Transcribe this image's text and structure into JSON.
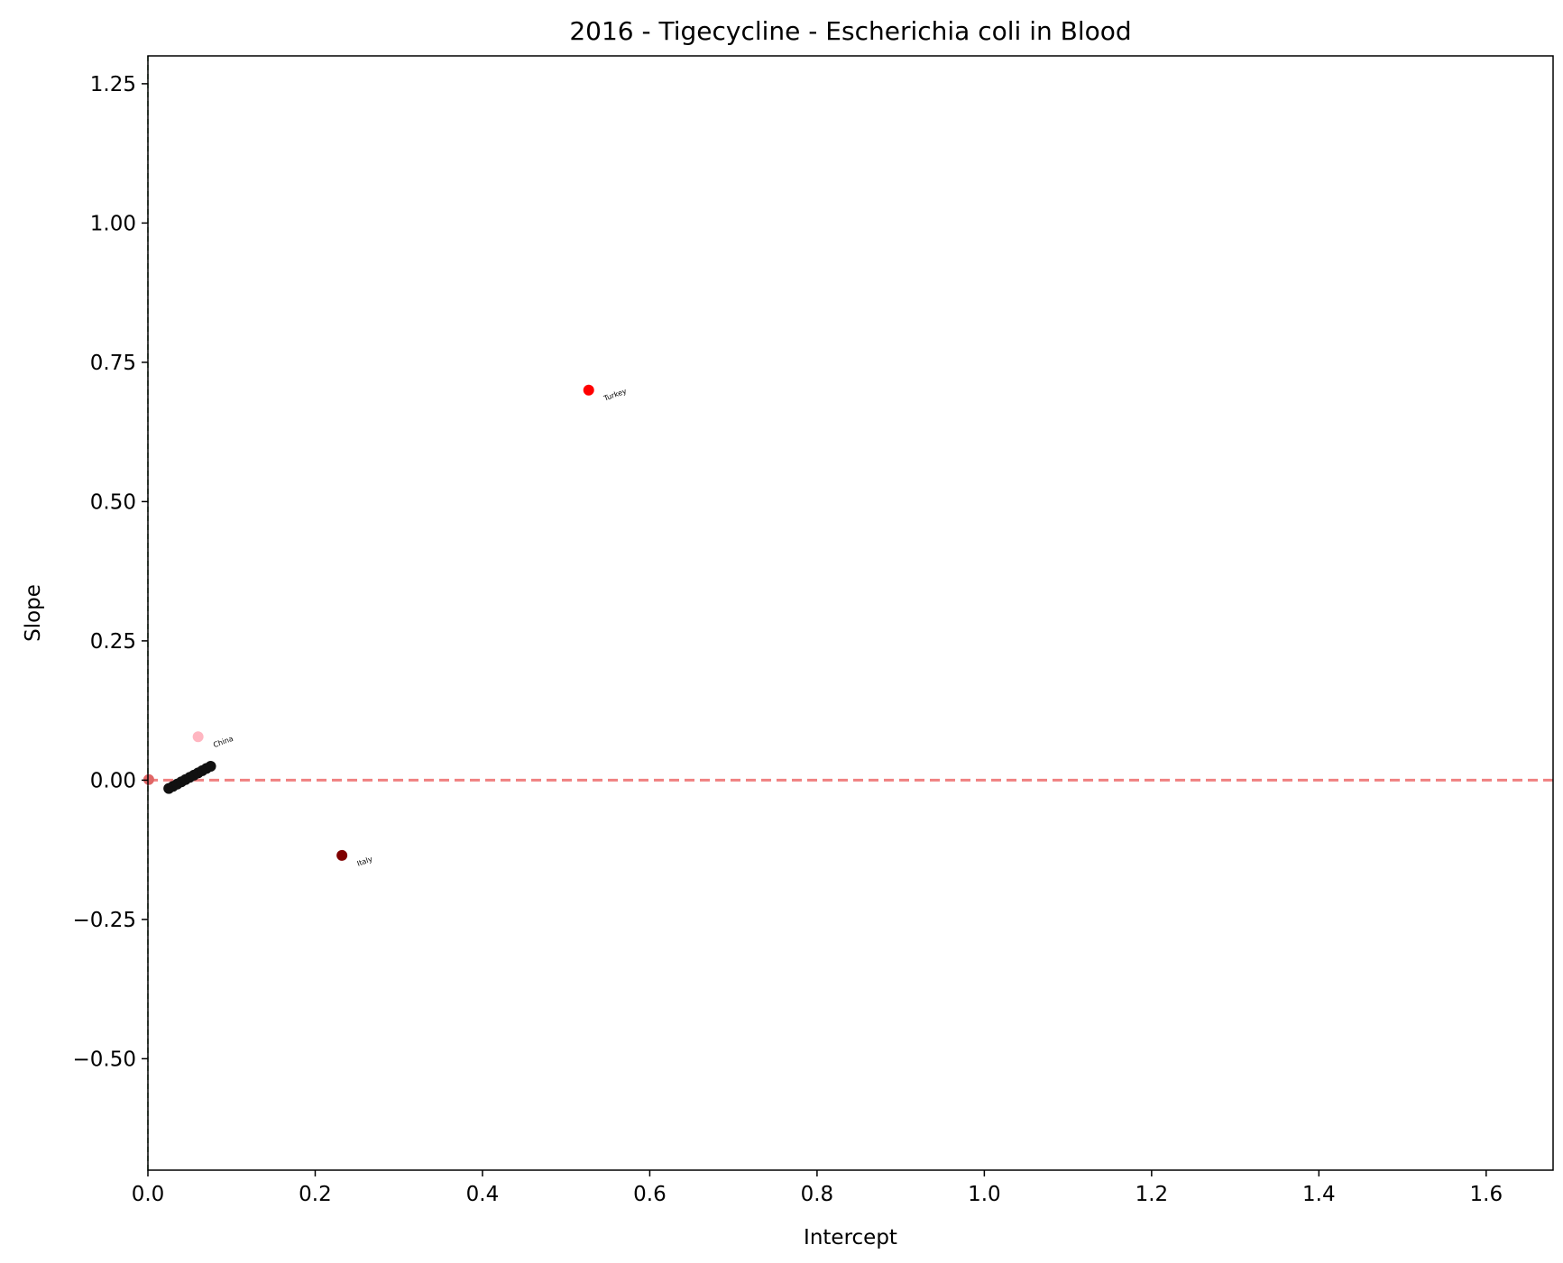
{
  "chart_data": {
    "type": "scatter",
    "title": "2016 - Tigecycline - Escherichia coli in Blood",
    "xlabel": "Intercept",
    "ylabel": "Slope",
    "xlim": [
      0.0,
      1.68
    ],
    "ylim": [
      -0.7,
      1.3
    ],
    "xticks": [
      0.0,
      0.2,
      0.4,
      0.6,
      0.8,
      1.0,
      1.2,
      1.4,
      1.6
    ],
    "yticks": [
      -0.5,
      -0.25,
      0.0,
      0.25,
      0.5,
      0.75,
      1.0,
      1.25
    ],
    "xtick_labels": [
      "0.0",
      "0.2",
      "0.4",
      "0.6",
      "0.8",
      "1.0",
      "1.2",
      "1.4",
      "1.6"
    ],
    "ytick_labels": [
      "−0.50",
      "−0.25",
      "0.00",
      "0.25",
      "0.50",
      "0.75",
      "1.00",
      "1.25"
    ],
    "grid": false,
    "reference_lines": [
      {
        "orientation": "horizontal",
        "value": 0.0,
        "style": "dashed",
        "color": "#f08080"
      },
      {
        "orientation": "vertical",
        "value": 0.0,
        "style": "dashed",
        "color": "#2e7d32"
      }
    ],
    "points": [
      {
        "x": 0.527,
        "y": 0.7,
        "label": "Turkey",
        "color": "#ff0000"
      },
      {
        "x": 0.232,
        "y": -0.135,
        "label": "Italy",
        "color": "#800000"
      },
      {
        "x": 0.06,
        "y": 0.078,
        "label": "China",
        "color": "#ffb6c1"
      },
      {
        "x": 0.001,
        "y": 0.001,
        "label": "",
        "color": "#e06666"
      },
      {
        "x": 0.025,
        "y": -0.015,
        "label": "",
        "color": "#111111"
      },
      {
        "x": 0.03,
        "y": -0.011,
        "label": "",
        "color": "#111111"
      },
      {
        "x": 0.035,
        "y": -0.007,
        "label": "",
        "color": "#111111"
      },
      {
        "x": 0.04,
        "y": -0.003,
        "label": "",
        "color": "#111111"
      },
      {
        "x": 0.045,
        "y": 0.001,
        "label": "",
        "color": "#111111"
      },
      {
        "x": 0.05,
        "y": 0.005,
        "label": "",
        "color": "#111111"
      },
      {
        "x": 0.055,
        "y": 0.009,
        "label": "",
        "color": "#111111"
      },
      {
        "x": 0.06,
        "y": 0.013,
        "label": "",
        "color": "#111111"
      },
      {
        "x": 0.065,
        "y": 0.017,
        "label": "",
        "color": "#111111"
      },
      {
        "x": 0.07,
        "y": 0.021,
        "label": "",
        "color": "#111111"
      },
      {
        "x": 0.075,
        "y": 0.025,
        "label": "",
        "color": "#111111"
      }
    ]
  }
}
